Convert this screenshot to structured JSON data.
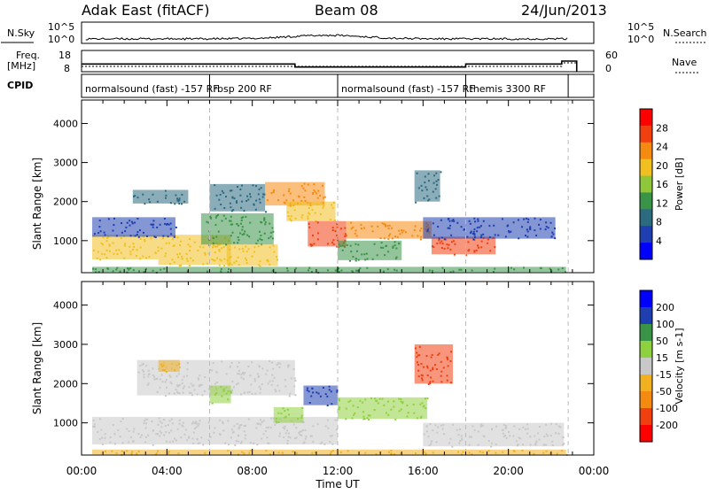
{
  "header": {
    "station": "Adak East (fitACF)",
    "beam": "Beam 08",
    "date": "24/Jun/2013"
  },
  "strip_labels": {
    "nsky": "N.Sky",
    "nsearch": "N.Search",
    "freq_line1": "Freq.",
    "freq_line2": "[MHz]",
    "nave": "Nave",
    "cpid": "CPID"
  },
  "strip_ticks": {
    "nsky_left": [
      "10^5",
      "10^0"
    ],
    "nsky_right": [
      "10^5",
      "10^0"
    ],
    "freq_left": [
      "18",
      "8"
    ],
    "nave_right": [
      "60",
      "0"
    ]
  },
  "cpid_segments": [
    {
      "label": "normalsound (fast) -157 RF",
      "start_hour": 0.0,
      "end_hour": 6.0
    },
    {
      "label": "rbsp 200 RF",
      "start_hour": 6.0,
      "end_hour": 12.0
    },
    {
      "label": "normalsound (fast) -157 RF",
      "start_hour": 12.0,
      "end_hour": 18.0
    },
    {
      "label": "themis 3300 RF",
      "start_hour": 18.0,
      "end_hour": 22.8
    }
  ],
  "x_axis": {
    "title": "Time UT",
    "tick_labels": [
      "00:00",
      "04:00",
      "08:00",
      "12:00",
      "16:00",
      "20:00",
      "00:00"
    ]
  },
  "chart_data": [
    {
      "type": "heatmap",
      "name": "power",
      "xlim": [
        0,
        24
      ],
      "ylim": [
        180,
        4600
      ],
      "ylabel": "Slant Range [km]",
      "yticks": [
        "1000",
        "2000",
        "3000",
        "4000"
      ],
      "colorbar": {
        "label": "Power [dB]",
        "tick_labels": [
          "28",
          "24",
          "20",
          "16",
          "12",
          "8",
          "4"
        ],
        "range": [
          0,
          32
        ],
        "colors": [
          "#0000ff",
          "#1f3fb0",
          "#2c6a80",
          "#3a9448",
          "#8fc63a",
          "#f0c020",
          "#f58a10",
          "#f04010",
          "#ff0000"
        ]
      },
      "regions": [
        {
          "x0": 0.5,
          "x1": 22.7,
          "y0": 200,
          "y1": 330,
          "value": 14
        },
        {
          "x0": 0.5,
          "x1": 3.6,
          "y0": 520,
          "y1": 1150,
          "value": 18
        },
        {
          "x0": 3.6,
          "x1": 7.0,
          "y0": 380,
          "y1": 1150,
          "value": 20
        },
        {
          "x0": 5.6,
          "x1": 9.0,
          "y0": 900,
          "y1": 1700,
          "value": 12
        },
        {
          "x0": 6.8,
          "x1": 9.2,
          "y0": 350,
          "y1": 900,
          "value": 18
        },
        {
          "x0": 8.6,
          "x1": 11.4,
          "y0": 1900,
          "y1": 2500,
          "value": 24
        },
        {
          "x0": 9.6,
          "x1": 11.9,
          "y0": 1500,
          "y1": 2000,
          "value": 20
        },
        {
          "x0": 10.6,
          "x1": 12.4,
          "y0": 850,
          "y1": 1500,
          "value": 26
        },
        {
          "x0": 12.4,
          "x1": 16.4,
          "y0": 1050,
          "y1": 1500,
          "value": 22
        },
        {
          "x0": 12.0,
          "x1": 15.0,
          "y0": 500,
          "y1": 1000,
          "value": 12
        },
        {
          "x0": 16.4,
          "x1": 19.4,
          "y0": 650,
          "y1": 1100,
          "value": 26
        },
        {
          "x0": 16.0,
          "x1": 22.2,
          "y0": 1050,
          "y1": 1600,
          "value": 6
        },
        {
          "x0": 2.4,
          "x1": 5.0,
          "y0": 1950,
          "y1": 2300,
          "value": 8
        },
        {
          "x0": 6.0,
          "x1": 8.6,
          "y0": 1750,
          "y1": 2450,
          "value": 10
        },
        {
          "x0": 15.6,
          "x1": 16.8,
          "y0": 2000,
          "y1": 2800,
          "value": 8
        },
        {
          "x0": 0.5,
          "x1": 4.4,
          "y0": 1100,
          "y1": 1600,
          "value": 6
        }
      ]
    },
    {
      "type": "heatmap",
      "name": "velocity",
      "xlim": [
        0,
        24
      ],
      "ylim": [
        180,
        4600
      ],
      "ylabel": "Slant Range [km]",
      "yticks": [
        "1000",
        "2000",
        "3000",
        "4000"
      ],
      "colorbar": {
        "label": "Velocity [m s-1]",
        "tick_labels": [
          "200",
          "100",
          "50",
          "15",
          "-15",
          "-50",
          "-100",
          "-200"
        ],
        "range": [
          -250,
          250
        ],
        "colors": [
          "#ff0000",
          "#f04010",
          "#f58a10",
          "#f0b020",
          "#c8c8c8",
          "#8fd040",
          "#3a9448",
          "#1f3fb0",
          "#0000ff"
        ]
      },
      "regions": [
        {
          "x0": 0.5,
          "x1": 12.0,
          "y0": 450,
          "y1": 1150,
          "value": 0
        },
        {
          "x0": 2.6,
          "x1": 10.0,
          "y0": 1700,
          "y1": 2600,
          "value": 0
        },
        {
          "x0": 10.4,
          "x1": 12.0,
          "y0": 1450,
          "y1": 1950,
          "value": 180
        },
        {
          "x0": 12.0,
          "x1": 16.2,
          "y0": 1100,
          "y1": 1650,
          "value": 40
        },
        {
          "x0": 9.0,
          "x1": 10.4,
          "y0": 1000,
          "y1": 1400,
          "value": 40
        },
        {
          "x0": 16.0,
          "x1": 22.6,
          "y0": 400,
          "y1": 1000,
          "value": 0
        },
        {
          "x0": 15.6,
          "x1": 17.4,
          "y0": 2000,
          "y1": 3000,
          "value": -180
        },
        {
          "x0": 0.5,
          "x1": 22.7,
          "y0": 200,
          "y1": 320,
          "value": -60
        },
        {
          "x0": 3.6,
          "x1": 4.6,
          "y0": 2300,
          "y1": 2600,
          "value": -60
        },
        {
          "x0": 6.0,
          "x1": 7.0,
          "y0": 1500,
          "y1": 1950,
          "value": 40
        }
      ]
    }
  ],
  "strip_series": {
    "freq_mhz": [
      {
        "start_hour": 0.0,
        "end_hour": 10.0,
        "value": 11.6
      },
      {
        "start_hour": 10.0,
        "end_hour": 18.0,
        "value": 10.2
      },
      {
        "start_hour": 18.0,
        "end_hour": 22.5,
        "value": 11.6
      },
      {
        "start_hour": 22.5,
        "end_hour": 23.2,
        "value": 13.0
      }
    ],
    "nave": [
      {
        "start_hour": 0.0,
        "end_hour": 22.5,
        "value": 15
      },
      {
        "start_hour": 22.5,
        "end_hour": 23.2,
        "value": 25
      }
    ]
  }
}
